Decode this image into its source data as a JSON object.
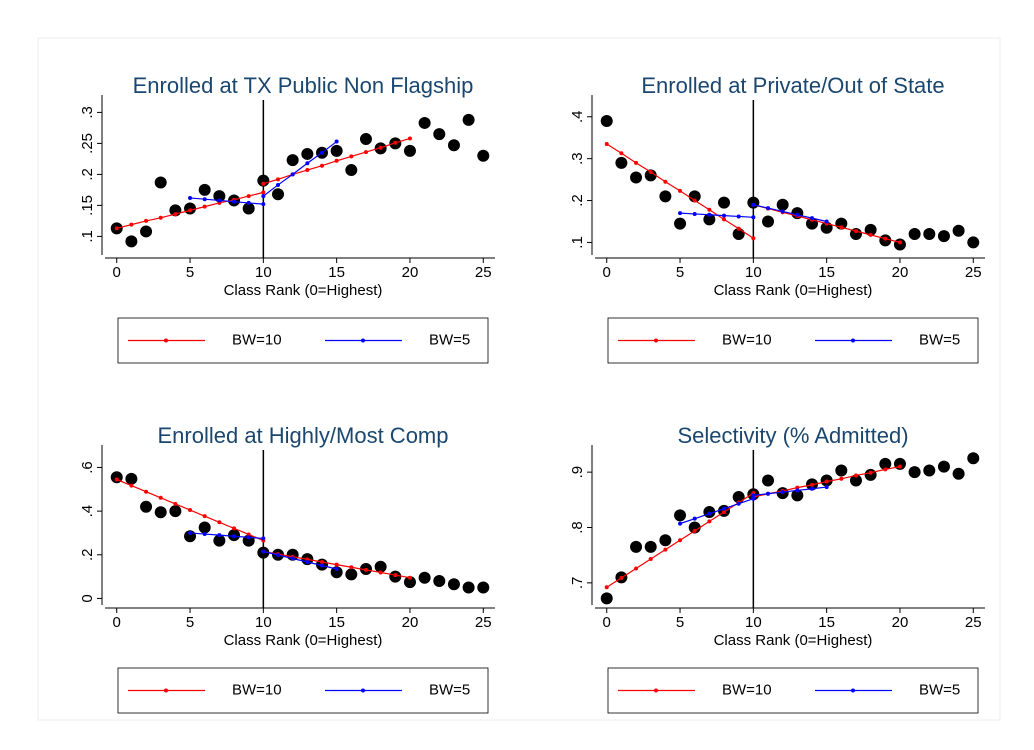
{
  "chart_data": [
    {
      "type": "scatter",
      "title": "Enrolled at TX Public Non Flagship",
      "xlabel": "Class Rank (0=Highest)",
      "x": [
        0,
        1,
        2,
        3,
        4,
        5,
        6,
        7,
        8,
        9,
        10,
        11,
        12,
        13,
        14,
        15,
        16,
        17,
        18,
        19,
        20,
        21,
        22,
        23,
        24,
        25
      ],
      "values": [
        0.113,
        0.092,
        0.108,
        0.187,
        0.142,
        0.145,
        0.175,
        0.165,
        0.158,
        0.145,
        0.19,
        0.168,
        0.223,
        0.233,
        0.235,
        0.238,
        0.207,
        0.257,
        0.242,
        0.25,
        0.238,
        0.283,
        0.265,
        0.247,
        0.288,
        0.23
      ],
      "color": "#000000",
      "series": [
        {
          "name": "BW=10",
          "color": "#ff0000",
          "x": [
            0,
            1,
            2,
            3,
            4,
            5,
            6,
            7,
            8,
            9,
            10,
            null,
            10,
            11,
            12,
            13,
            14,
            15,
            16,
            17,
            18,
            19,
            20
          ],
          "values": [
            0.113,
            0.119,
            0.125,
            0.13,
            0.136,
            0.142,
            0.148,
            0.154,
            0.159,
            0.165,
            0.171,
            null,
            0.185,
            0.192,
            0.2,
            0.207,
            0.214,
            0.222,
            0.229,
            0.236,
            0.243,
            0.251,
            0.258
          ]
        },
        {
          "name": "BW=5",
          "color": "#0000ff",
          "x": [
            5,
            6,
            7,
            8,
            9,
            10,
            null,
            10,
            11,
            12,
            13,
            14,
            15
          ],
          "values": [
            0.162,
            0.16,
            0.158,
            0.156,
            0.154,
            0.152,
            null,
            0.165,
            0.183,
            0.2,
            0.218,
            0.235,
            0.253
          ]
        }
      ],
      "vline": 10,
      "xlim": [
        -0.8,
        25.8
      ],
      "xticks": [
        0,
        5,
        10,
        15,
        20,
        25
      ],
      "ylim": [
        0.07,
        0.32
      ],
      "yticks": [
        {
          "value": 0.1,
          "label": ".1"
        },
        {
          "value": 0.15,
          "label": ".15"
        },
        {
          "value": 0.2,
          "label": ".2"
        },
        {
          "value": 0.25,
          "label": ".25"
        },
        {
          "value": 0.3,
          "label": ".3"
        }
      ],
      "legend": "bottom"
    },
    {
      "type": "scatter",
      "title": "Enrolled at Private/Out of State",
      "xlabel": "Class Rank (0=Highest)",
      "x": [
        0,
        1,
        2,
        3,
        4,
        5,
        6,
        7,
        8,
        9,
        10,
        11,
        12,
        13,
        14,
        15,
        16,
        17,
        18,
        19,
        20,
        21,
        22,
        23,
        24,
        25
      ],
      "values": [
        0.39,
        0.29,
        0.255,
        0.26,
        0.21,
        0.145,
        0.21,
        0.155,
        0.195,
        0.12,
        0.195,
        0.15,
        0.19,
        0.17,
        0.145,
        0.135,
        0.145,
        0.12,
        0.13,
        0.105,
        0.095,
        0.12,
        0.12,
        0.115,
        0.128,
        0.1
      ],
      "color": "#000000",
      "series": [
        {
          "name": "BW=10",
          "color": "#ff0000",
          "x": [
            0,
            1,
            2,
            3,
            4,
            5,
            6,
            7,
            8,
            9,
            10,
            null,
            10,
            11,
            12,
            13,
            14,
            15,
            16,
            17,
            18,
            19,
            20
          ],
          "values": [
            0.335,
            0.313,
            0.29,
            0.268,
            0.245,
            0.223,
            0.2,
            0.178,
            0.155,
            0.133,
            0.11,
            null,
            0.19,
            0.181,
            0.172,
            0.163,
            0.154,
            0.145,
            0.136,
            0.127,
            0.118,
            0.109,
            0.1
          ]
        },
        {
          "name": "BW=5",
          "color": "#0000ff",
          "x": [
            5,
            6,
            7,
            8,
            9,
            10,
            null,
            10,
            11,
            12,
            13,
            14,
            15
          ],
          "values": [
            0.17,
            0.168,
            0.166,
            0.164,
            0.162,
            0.16,
            null,
            0.19,
            0.182,
            0.174,
            0.166,
            0.158,
            0.15
          ]
        }
      ],
      "vline": 10,
      "xlim": [
        -0.8,
        25.8
      ],
      "xticks": [
        0,
        5,
        10,
        15,
        20,
        25
      ],
      "ylim": [
        0.07,
        0.44
      ],
      "yticks": [
        {
          "value": 0.1,
          "label": ".1"
        },
        {
          "value": 0.2,
          "label": ".2"
        },
        {
          "value": 0.3,
          "label": ".3"
        },
        {
          "value": 0.4,
          "label": ".4"
        }
      ],
      "legend": "bottom"
    },
    {
      "type": "scatter",
      "title": "Enrolled at Highly/Most Comp",
      "xlabel": "Class Rank (0=Highest)",
      "x": [
        0,
        1,
        2,
        3,
        4,
        5,
        6,
        7,
        8,
        9,
        10,
        11,
        12,
        13,
        14,
        15,
        16,
        17,
        18,
        19,
        20,
        21,
        22,
        23,
        24,
        25
      ],
      "values": [
        0.555,
        0.548,
        0.42,
        0.395,
        0.4,
        0.285,
        0.325,
        0.265,
        0.29,
        0.265,
        0.21,
        0.2,
        0.2,
        0.18,
        0.155,
        0.12,
        0.11,
        0.135,
        0.145,
        0.1,
        0.075,
        0.095,
        0.08,
        0.065,
        0.05,
        0.05
      ],
      "color": "#000000",
      "series": [
        {
          "name": "BW=10",
          "color": "#ff0000",
          "x": [
            0,
            1,
            2,
            3,
            4,
            5,
            6,
            7,
            8,
            9,
            10,
            null,
            10,
            11,
            12,
            13,
            14,
            15,
            16,
            17,
            18,
            19,
            20
          ],
          "values": [
            0.545,
            0.517,
            0.489,
            0.461,
            0.433,
            0.405,
            0.377,
            0.349,
            0.321,
            0.293,
            0.265,
            null,
            0.215,
            0.203,
            0.191,
            0.179,
            0.167,
            0.155,
            0.143,
            0.131,
            0.119,
            0.107,
            0.095
          ]
        },
        {
          "name": "BW=5",
          "color": "#0000ff",
          "x": [
            5,
            6,
            7,
            8,
            9,
            10,
            null,
            10,
            11,
            12,
            13,
            14,
            15
          ],
          "values": [
            0.3,
            0.295,
            0.29,
            0.285,
            0.28,
            0.275,
            null,
            0.215,
            0.199,
            0.183,
            0.167,
            0.151,
            0.135
          ]
        }
      ],
      "vline": 10,
      "xlim": [
        -0.8,
        25.8
      ],
      "xticks": [
        0,
        5,
        10,
        15,
        20,
        25
      ],
      "ylim": [
        -0.03,
        0.68
      ],
      "yticks": [
        0,
        {
          "value": 0.2,
          "label": ".2"
        },
        {
          "value": 0.4,
          "label": ".4"
        },
        {
          "value": 0.6,
          "label": ".6"
        }
      ],
      "legend": "bottom"
    },
    {
      "type": "scatter",
      "title": "Selectivity (% Admitted)",
      "xlabel": "Class Rank (0=Highest)",
      "x": [
        0,
        1,
        2,
        3,
        4,
        5,
        6,
        7,
        8,
        9,
        10,
        11,
        12,
        13,
        14,
        15,
        16,
        17,
        18,
        19,
        20,
        21,
        22,
        23,
        24,
        25
      ],
      "values": [
        0.672,
        0.71,
        0.765,
        0.765,
        0.777,
        0.822,
        0.8,
        0.828,
        0.83,
        0.855,
        0.86,
        0.885,
        0.862,
        0.858,
        0.878,
        0.885,
        0.903,
        0.885,
        0.895,
        0.915,
        0.915,
        0.9,
        0.903,
        0.91,
        0.897,
        0.925
      ],
      "color": "#000000",
      "series": [
        {
          "name": "BW=10",
          "color": "#ff0000",
          "x": [
            0,
            1,
            2,
            3,
            4,
            5,
            6,
            7,
            8,
            9,
            10,
            null,
            10,
            11,
            12,
            13,
            14,
            15,
            16,
            17,
            18,
            19,
            20
          ],
          "values": [
            0.692,
            0.709,
            0.726,
            0.743,
            0.76,
            0.777,
            0.794,
            0.811,
            0.828,
            0.845,
            0.862,
            null,
            0.855,
            0.861,
            0.866,
            0.872,
            0.877,
            0.883,
            0.888,
            0.894,
            0.899,
            0.905,
            0.91
          ]
        },
        {
          "name": "BW=5",
          "color": "#0000ff",
          "x": [
            5,
            6,
            7,
            8,
            9,
            10,
            null,
            10,
            11,
            12,
            13,
            14,
            15
          ],
          "values": [
            0.807,
            0.816,
            0.825,
            0.834,
            0.843,
            0.852,
            null,
            0.858,
            0.861,
            0.864,
            0.867,
            0.87,
            0.873
          ]
        }
      ],
      "vline": 10,
      "xlim": [
        -0.8,
        25.8
      ],
      "xticks": [
        0,
        5,
        10,
        15,
        20,
        25
      ],
      "ylim": [
        0.66,
        0.94
      ],
      "yticks": [
        {
          "value": 0.7,
          "label": ".7"
        },
        {
          "value": 0.8,
          "label": ".8"
        },
        {
          "value": 0.9,
          "label": ".9"
        }
      ],
      "legend": "bottom"
    }
  ]
}
